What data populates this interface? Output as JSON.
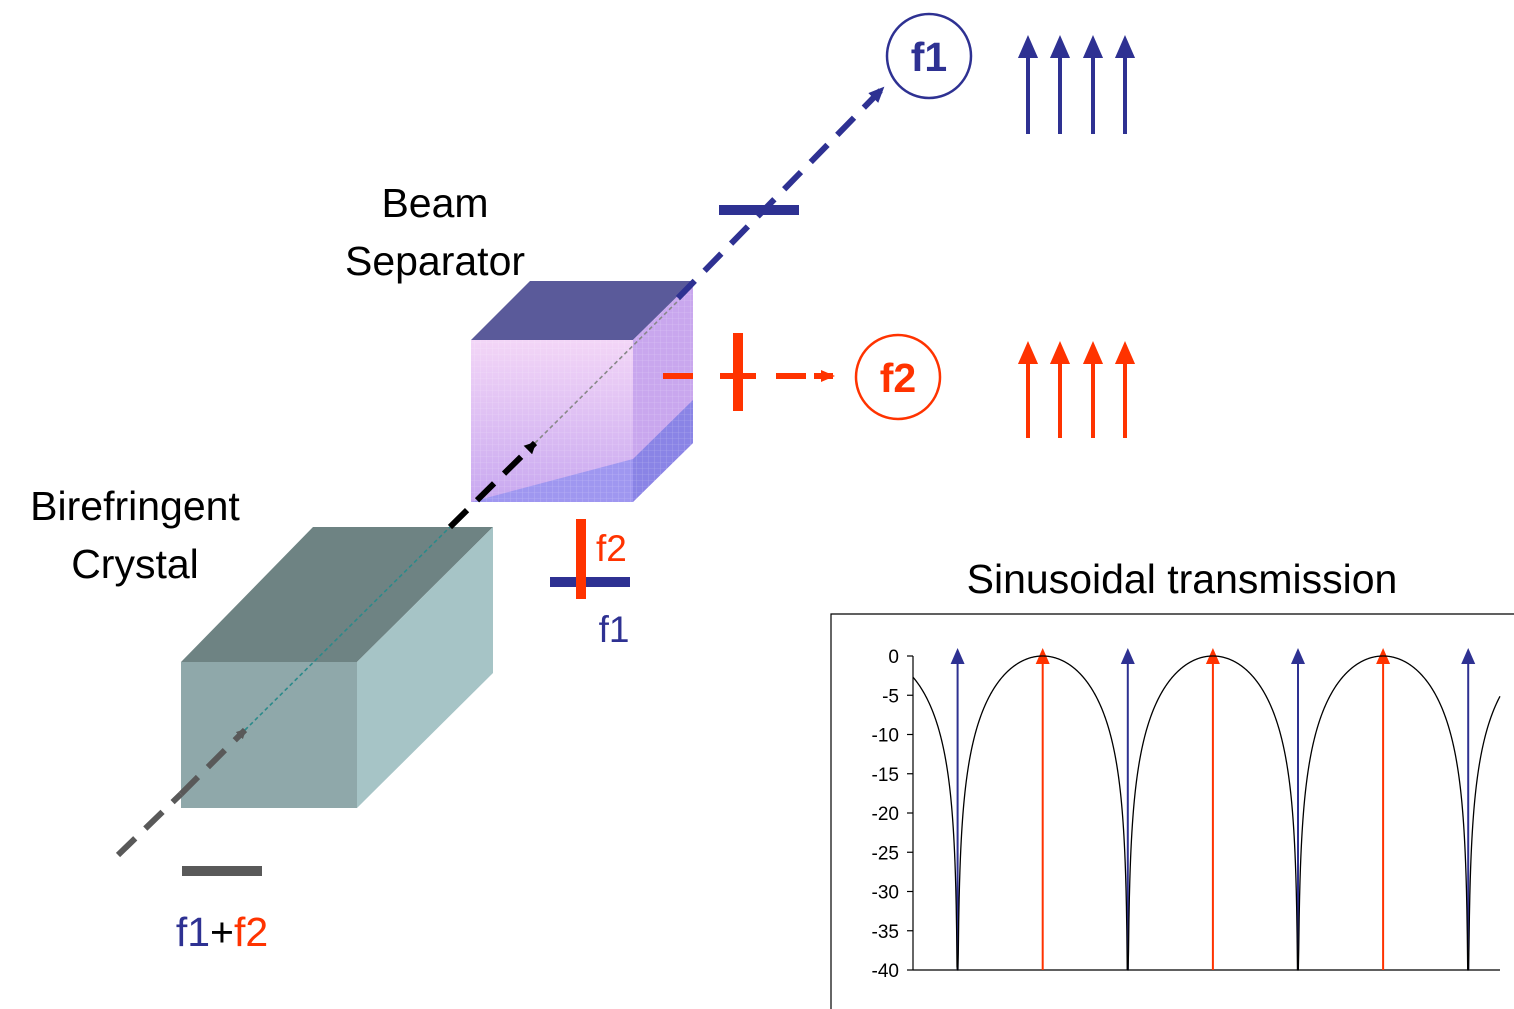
{
  "labels": {
    "beam_separator_line1": "Beam",
    "beam_separator_line2": "Separator",
    "birefringent_line1": "Birefringent",
    "birefringent_line2": "Crystal",
    "input_f1": "f1",
    "input_plus": "+",
    "input_f2": "f2",
    "output_f1": "f1",
    "output_f2": "f2",
    "pol_f2": "f2",
    "pol_f1": "f1"
  },
  "colors": {
    "f1": "#2e3192",
    "f2": "#ff3300",
    "input_beam": "#595959",
    "crystal_front": "#8fa8aa",
    "crystal_top": "#6e8383",
    "crystal_side": "#a6c4c6",
    "separator_top": "#5a5a9a",
    "separator_front": "#e7c6f3",
    "separator_side": "#c9a7ee",
    "separator_bottom": "#9f97f0"
  },
  "chart_data": {
    "type": "line",
    "title": "Sinusoidal transmission",
    "xlabel": "",
    "ylabel": "",
    "ylim": [
      -40,
      0
    ],
    "yticks": [
      "0",
      "-5",
      "-10",
      "-15",
      "-20",
      "-25",
      "-30",
      "-35",
      "-40"
    ],
    "grid": false,
    "curve": "0 dB maxima at the red (f2) lines; deep nulls (about -40 dB) at the blue (f1) lines",
    "f1_lines": [
      0.0655,
      0.3155,
      0.5655,
      0.8155
    ],
    "f2_lines": [
      0.1905,
      0.4405,
      0.6905
    ],
    "x_range": [
      0,
      0.8622
    ],
    "marker_top": 0
  }
}
